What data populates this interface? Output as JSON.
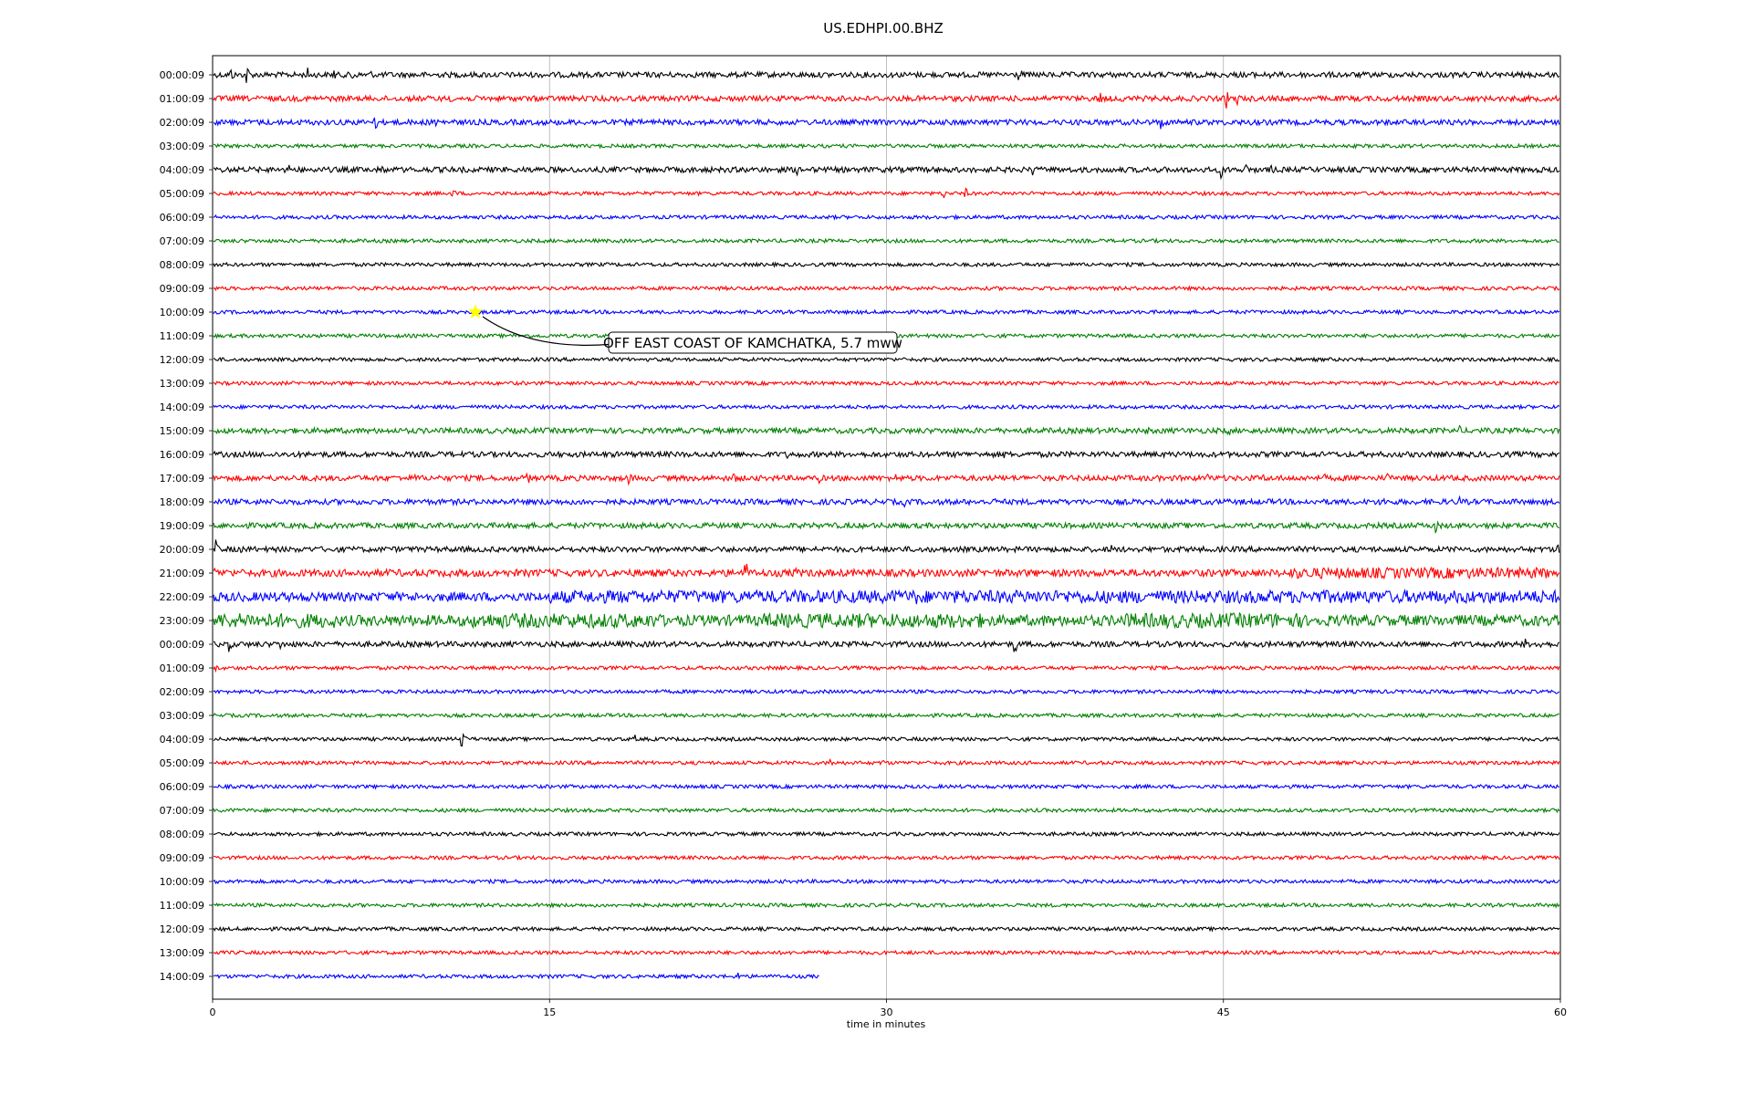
{
  "chart_data": {
    "type": "line",
    "title": "US.EDHPI.00.BHZ",
    "xlabel": "time in minutes",
    "ylabel": "",
    "xlim": [
      0,
      60
    ],
    "xticks": [
      "0",
      "15",
      "30",
      "45",
      "60"
    ],
    "xtick_values": [
      0,
      15,
      30,
      45,
      60
    ],
    "grid": "vertical",
    "trace_colors": [
      "#000000",
      "#ff0000",
      "#0000ff",
      "#008000"
    ],
    "rows": [
      "00:00:09",
      "01:00:09",
      "02:00:09",
      "03:00:09",
      "04:00:09",
      "05:00:09",
      "06:00:09",
      "07:00:09",
      "08:00:09",
      "09:00:09",
      "10:00:09",
      "11:00:09",
      "12:00:09",
      "13:00:09",
      "14:00:09",
      "15:00:09",
      "16:00:09",
      "17:00:09",
      "18:00:09",
      "19:00:09",
      "20:00:09",
      "21:00:09",
      "22:00:09",
      "23:00:09",
      "00:00:09",
      "01:00:09",
      "02:00:09",
      "03:00:09",
      "04:00:09",
      "05:00:09",
      "06:00:09",
      "07:00:09",
      "08:00:09",
      "09:00:09",
      "10:00:09",
      "11:00:09",
      "12:00:09",
      "13:00:09",
      "14:00:09"
    ],
    "last_row_end_minute": 27,
    "row_noise_level": [
      3,
      3,
      3,
      2,
      3,
      2,
      2,
      2,
      2,
      2,
      2,
      2,
      2,
      2,
      2,
      3,
      3,
      3,
      3,
      3,
      3,
      4,
      5,
      6,
      3,
      2,
      2,
      2,
      2,
      2,
      2,
      2,
      2,
      2,
      2,
      2,
      2,
      2,
      2
    ],
    "events": [
      {
        "row": 0,
        "minute": 0.8,
        "amp": 10
      },
      {
        "row": 0,
        "minute": 1.5,
        "amp": 14
      },
      {
        "row": 0,
        "minute": 4.2,
        "amp": 10
      },
      {
        "row": 0,
        "minute": 5.4,
        "amp": 9
      },
      {
        "row": 0,
        "minute": 6.2,
        "amp": 12
      },
      {
        "row": 0,
        "minute": 7.0,
        "amp": 7
      },
      {
        "row": 0,
        "minute": 35.9,
        "amp": 12
      },
      {
        "row": 0,
        "minute": 46.0,
        "amp": 9
      },
      {
        "row": 0,
        "minute": 47.0,
        "amp": 7
      },
      {
        "row": 1,
        "minute": 10.5,
        "amp": 8
      },
      {
        "row": 1,
        "minute": 11.0,
        "amp": 7
      },
      {
        "row": 1,
        "minute": 39.5,
        "amp": 9
      },
      {
        "row": 1,
        "minute": 40.5,
        "amp": 10
      },
      {
        "row": 1,
        "minute": 45.1,
        "amp": 14
      },
      {
        "row": 1,
        "minute": 45.6,
        "amp": 9
      },
      {
        "row": 2,
        "minute": 7.2,
        "amp": 12
      },
      {
        "row": 2,
        "minute": 9.9,
        "amp": 10
      },
      {
        "row": 2,
        "minute": 42.2,
        "amp": 11
      },
      {
        "row": 4,
        "minute": 3.4,
        "amp": 7
      },
      {
        "row": 4,
        "minute": 7.5,
        "amp": 10
      },
      {
        "row": 4,
        "minute": 25.0,
        "amp": 6
      },
      {
        "row": 4,
        "minute": 26.0,
        "amp": 7
      },
      {
        "row": 4,
        "minute": 36.5,
        "amp": 8
      },
      {
        "row": 4,
        "minute": 44.9,
        "amp": 12
      },
      {
        "row": 4,
        "minute": 46.0,
        "amp": 10
      },
      {
        "row": 4,
        "minute": 47.1,
        "amp": 8
      },
      {
        "row": 5,
        "minute": 10.7,
        "amp": 7
      },
      {
        "row": 5,
        "minute": 32.5,
        "amp": 8
      },
      {
        "row": 5,
        "minute": 33.5,
        "amp": 7
      },
      {
        "row": 15,
        "minute": 41.6,
        "amp": 6
      },
      {
        "row": 15,
        "minute": 43.5,
        "amp": 5
      },
      {
        "row": 15,
        "minute": 45.2,
        "amp": 8
      },
      {
        "row": 15,
        "minute": 55.5,
        "amp": 6
      },
      {
        "row": 16,
        "minute": 25.6,
        "amp": 6
      },
      {
        "row": 16,
        "minute": 28.2,
        "amp": 5
      },
      {
        "row": 16,
        "minute": 35.2,
        "amp": 6
      },
      {
        "row": 17,
        "minute": 9.0,
        "amp": 7
      },
      {
        "row": 17,
        "minute": 14.0,
        "amp": 9
      },
      {
        "row": 17,
        "minute": 18.5,
        "amp": 10
      },
      {
        "row": 17,
        "minute": 23.2,
        "amp": 9
      },
      {
        "row": 17,
        "minute": 27.0,
        "amp": 6
      },
      {
        "row": 17,
        "minute": 30.4,
        "amp": 6
      },
      {
        "row": 17,
        "minute": 44.3,
        "amp": 9
      },
      {
        "row": 17,
        "minute": 46.8,
        "amp": 6
      },
      {
        "row": 17,
        "minute": 49.5,
        "amp": 6
      },
      {
        "row": 17,
        "minute": 52.3,
        "amp": 8
      },
      {
        "row": 18,
        "minute": 2.0,
        "amp": 5
      },
      {
        "row": 18,
        "minute": 14.8,
        "amp": 7
      },
      {
        "row": 18,
        "minute": 16.5,
        "amp": 6
      },
      {
        "row": 18,
        "minute": 30.8,
        "amp": 6
      },
      {
        "row": 18,
        "minute": 34.8,
        "amp": 6
      },
      {
        "row": 18,
        "minute": 52.0,
        "amp": 12
      },
      {
        "row": 18,
        "minute": 55.5,
        "amp": 7
      },
      {
        "row": 19,
        "minute": 54.4,
        "amp": 12
      },
      {
        "row": 20,
        "minute": 0.1,
        "amp": 14
      },
      {
        "row": 20,
        "minute": 1.3,
        "amp": 9
      },
      {
        "row": 20,
        "minute": 20.7,
        "amp": 6
      },
      {
        "row": 20,
        "minute": 40.0,
        "amp": 6
      },
      {
        "row": 20,
        "minute": 59.9,
        "amp": 13
      },
      {
        "row": 21,
        "minute": 0.1,
        "amp": 8
      },
      {
        "row": 21,
        "minute": 23.7,
        "amp": 18
      },
      {
        "row": 21,
        "minute": 25.9,
        "amp": 12
      },
      {
        "row": 22,
        "minute": 3.3,
        "amp": 7
      },
      {
        "row": 22,
        "minute": 4.4,
        "amp": 8
      },
      {
        "row": 22,
        "minute": 30.7,
        "amp": 9
      },
      {
        "row": 22,
        "minute": 31.3,
        "amp": 12
      },
      {
        "row": 22,
        "minute": 52.2,
        "amp": 10
      },
      {
        "row": 22,
        "minute": 53.3,
        "amp": 7
      },
      {
        "row": 23,
        "minute": 20.5,
        "amp": 13
      },
      {
        "row": 23,
        "minute": 22.3,
        "amp": 12
      },
      {
        "row": 23,
        "minute": 47.1,
        "amp": 7
      },
      {
        "row": 24,
        "minute": 0.7,
        "amp": 10
      },
      {
        "row": 24,
        "minute": 3.0,
        "amp": 7
      },
      {
        "row": 24,
        "minute": 16.5,
        "amp": 6
      },
      {
        "row": 24,
        "minute": 35.7,
        "amp": 14
      },
      {
        "row": 24,
        "minute": 58.4,
        "amp": 8
      },
      {
        "row": 24,
        "minute": 59.1,
        "amp": 7
      },
      {
        "row": 25,
        "minute": 0.1,
        "amp": 7
      },
      {
        "row": 28,
        "minute": 11.0,
        "amp": 20
      },
      {
        "row": 28,
        "minute": 18.8,
        "amp": 5
      },
      {
        "row": 29,
        "minute": 27.5,
        "amp": 7
      },
      {
        "row": 29,
        "minute": 28.6,
        "amp": 7
      },
      {
        "row": 29,
        "minute": 29.8,
        "amp": 6
      },
      {
        "row": 38,
        "minute": 23.4,
        "amp": 6
      }
    ],
    "bursts": [
      {
        "row": 21,
        "start": 48,
        "end": 59.5,
        "level": 6
      },
      {
        "row": 22,
        "start": 15,
        "end": 60,
        "level": 7
      },
      {
        "row": 23,
        "start": 0,
        "end": 5.5,
        "level": 8
      },
      {
        "row": 23,
        "start": 11.5,
        "end": 20,
        "level": 8
      },
      {
        "row": 23,
        "start": 24.5,
        "end": 34.5,
        "level": 8
      },
      {
        "row": 23,
        "start": 40.5,
        "end": 48.5,
        "level": 8
      }
    ],
    "annotations": [
      {
        "text": "OFF EAST COAST OF KAMCHATKA, 5.7 mww",
        "row": 10,
        "minute": 11.7,
        "marker": "star",
        "marker_color": "#ffff00"
      }
    ]
  }
}
